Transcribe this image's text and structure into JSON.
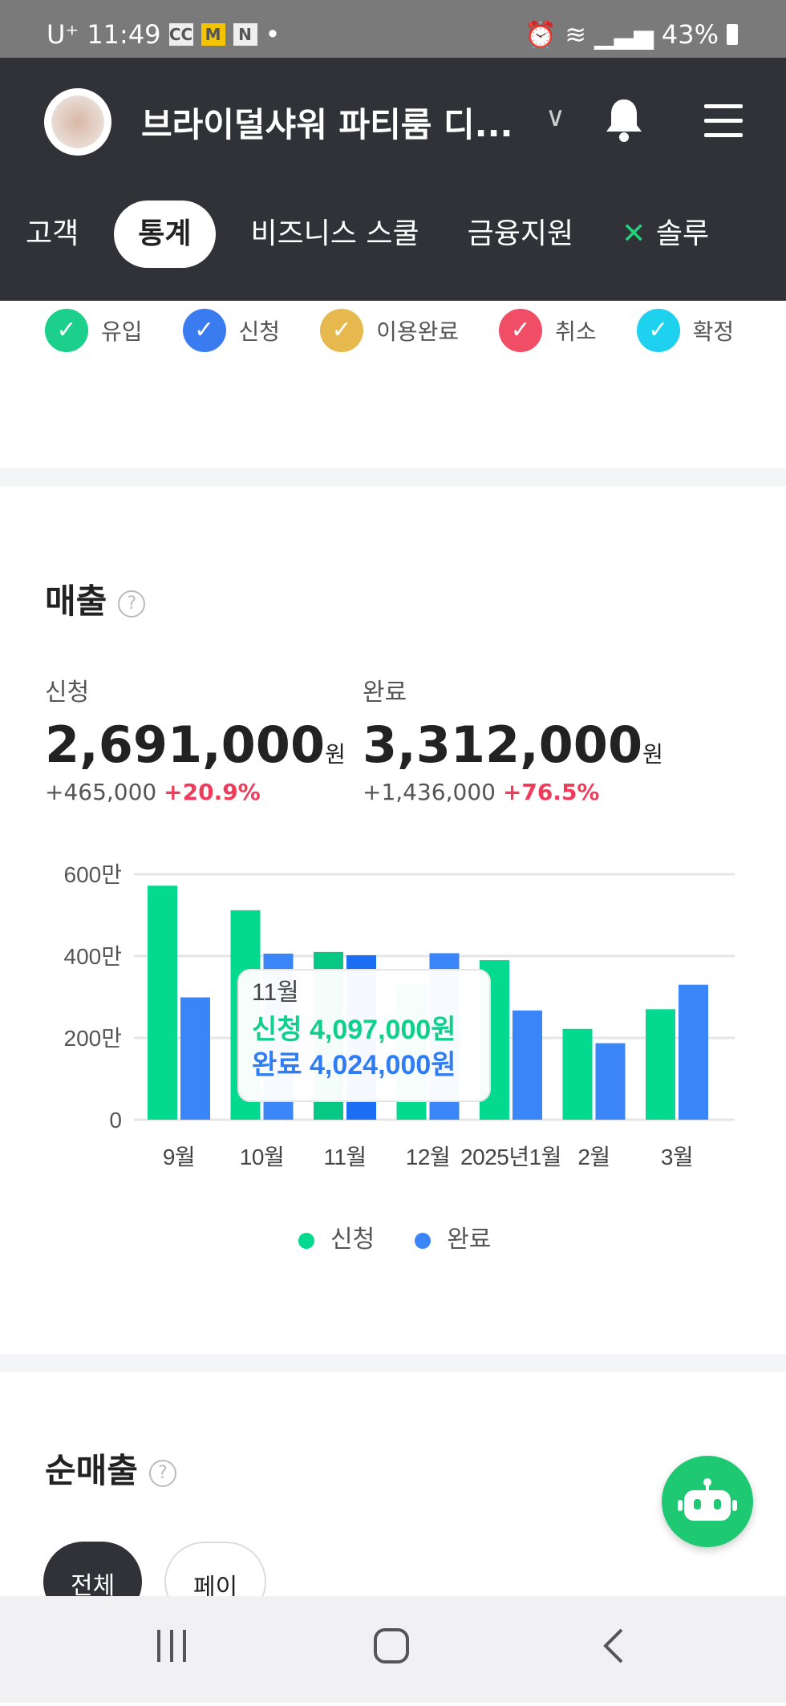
{
  "status_bar": {
    "carrier": "U⁺",
    "time": "11:49",
    "icons": [
      "cc-icon",
      "m-icon",
      "n-icon"
    ],
    "battery": "43%"
  },
  "header": {
    "title": "브라이덜샤워 파티룸 디...",
    "tabs": [
      {
        "label": "고객"
      },
      {
        "label": "통계",
        "active": true
      },
      {
        "label": "비즈니스 스쿨"
      },
      {
        "label": "금융지원"
      },
      {
        "label": "솔루"
      }
    ]
  },
  "status_legend": [
    {
      "label": "유입",
      "color": "#1ccf8a"
    },
    {
      "label": "신청",
      "color": "#3a7cf0"
    },
    {
      "label": "이용완료",
      "color": "#e6b94f"
    },
    {
      "label": "취소",
      "color": "#f04d66"
    },
    {
      "label": "확정",
      "color": "#1ed2ef"
    }
  ],
  "sales": {
    "title": "매출",
    "applied": {
      "label": "신청",
      "amount": "2,691,000",
      "unit": "원",
      "diff": "+465,000",
      "pct": "+20.9%"
    },
    "completed": {
      "label": "완료",
      "amount": "3,312,000",
      "unit": "원",
      "diff": "+1,436,000",
      "pct": "+76.5%"
    }
  },
  "chart_data": {
    "type": "bar",
    "categories": [
      "9월",
      "10월",
      "11월",
      "12월",
      "2025년1월",
      "2월",
      "3월"
    ],
    "yticks": [
      "0",
      "200만",
      "400만",
      "600만"
    ],
    "ylim": [
      0,
      600
    ],
    "series": [
      {
        "name": "신청",
        "color": "#03d98f",
        "values": [
          572,
          512,
          410,
          330,
          390,
          222,
          270
        ]
      },
      {
        "name": "완료",
        "color": "#3a85f7",
        "values": [
          299,
          406,
          402,
          407,
          267,
          187,
          330
        ]
      }
    ],
    "tooltip": {
      "month": "11월",
      "applied": "신청 4,097,000원",
      "completed": "완료 4,024,000원"
    },
    "legend": [
      "신청",
      "완료"
    ]
  },
  "net_sales": {
    "title": "순매출",
    "filters": [
      {
        "label": "전체",
        "active": true
      },
      {
        "label": "페이"
      }
    ]
  }
}
